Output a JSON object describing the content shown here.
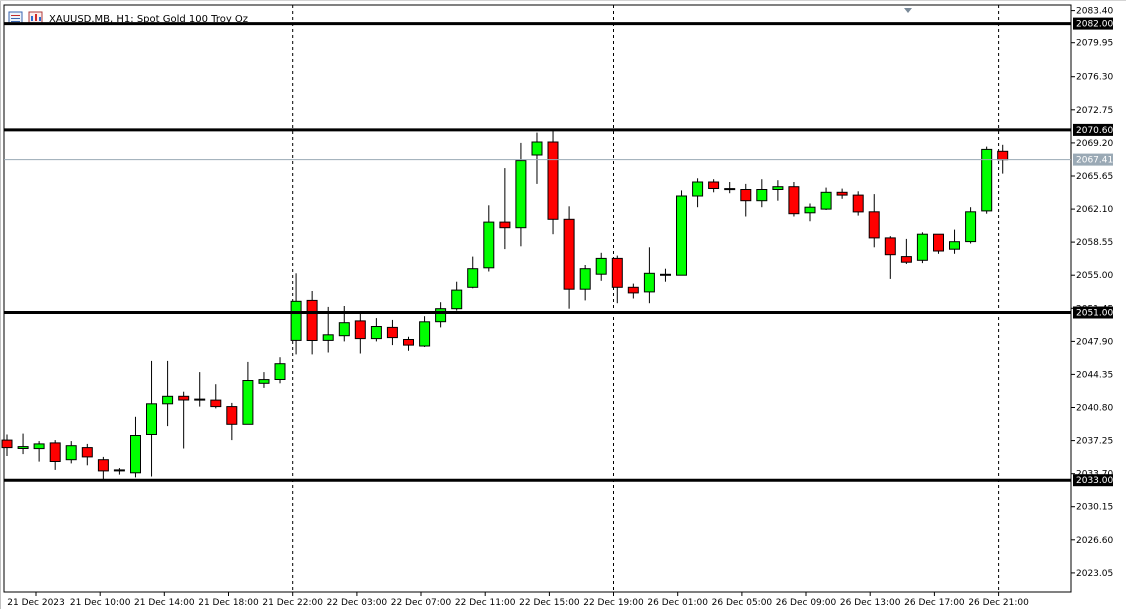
{
  "header": {
    "symbol": "XAUUSD.MB",
    "timeframe": "H1",
    "description": "Spot Gold 100 Troy Oz",
    "title": "XAUUSD.MB, H1:  Spot Gold 100 Troy Oz"
  },
  "colors": {
    "bull": "#00ff00",
    "bear": "#ff0000",
    "outline": "#000000",
    "level": "#000000",
    "bid": "#9aa9b5",
    "background": "#ffffff"
  },
  "chart_data": {
    "type": "candlestick",
    "symbol": "XAUUSD.MB",
    "timeframe": "H1",
    "ylim": [
      2021.0,
      2084.0
    ],
    "y_ticks": [
      "2083.40",
      "2079.95",
      "2076.30",
      "2072.75",
      "2069.20",
      "2065.65",
      "2062.10",
      "2058.55",
      "2055.00",
      "2051.45",
      "2047.90",
      "2044.35",
      "2040.80",
      "2037.25",
      "2033.70",
      "2030.15",
      "2026.60",
      "2023.05"
    ],
    "x_labels": [
      "21 Dec 2023",
      "21 Dec 10:00",
      "21 Dec 14:00",
      "21 Dec 18:00",
      "21 Dec 22:00",
      "22 Dec 03:00",
      "22 Dec 07:00",
      "22 Dec 11:00",
      "22 Dec 15:00",
      "22 Dec 19:00",
      "26 Dec 01:00",
      "26 Dec 05:00",
      "26 Dec 09:00",
      "26 Dec 13:00",
      "26 Dec 17:00",
      "26 Dec 21:00"
    ],
    "session_separators": [
      "21 Dec 22:00",
      "22 Dec 19:00",
      "26 Dec 21:00"
    ],
    "levels": [
      {
        "price": 2082.0,
        "label": "2082.00"
      },
      {
        "price": 2070.6,
        "label": "2070.60"
      },
      {
        "price": 2051.0,
        "label": "2051.00"
      },
      {
        "price": 2033.0,
        "label": "2033.00"
      }
    ],
    "current_price": {
      "price": 2067.41,
      "label": "2067.41"
    },
    "candles": [
      {
        "o": 2037.3,
        "h": 2037.9,
        "l": 2035.6,
        "c": 2036.5
      },
      {
        "o": 2036.4,
        "h": 2038.0,
        "l": 2035.8,
        "c": 2036.6
      },
      {
        "o": 2036.4,
        "h": 2037.2,
        "l": 2035.0,
        "c": 2036.9
      },
      {
        "o": 2037.0,
        "h": 2037.3,
        "l": 2034.1,
        "c": 2035.0
      },
      {
        "o": 2035.2,
        "h": 2037.2,
        "l": 2034.8,
        "c": 2036.7
      },
      {
        "o": 2036.5,
        "h": 2036.9,
        "l": 2034.6,
        "c": 2035.5
      },
      {
        "o": 2035.2,
        "h": 2035.5,
        "l": 2033.1,
        "c": 2034.0
      },
      {
        "o": 2034.0,
        "h": 2034.3,
        "l": 2033.6,
        "c": 2034.1
      },
      {
        "o": 2033.8,
        "h": 2039.8,
        "l": 2033.3,
        "c": 2037.8
      },
      {
        "o": 2037.9,
        "h": 2045.8,
        "l": 2033.4,
        "c": 2041.2
      },
      {
        "o": 2041.2,
        "h": 2045.8,
        "l": 2038.8,
        "c": 2042.0
      },
      {
        "o": 2042.0,
        "h": 2042.5,
        "l": 2036.4,
        "c": 2041.6
      },
      {
        "o": 2041.6,
        "h": 2044.6,
        "l": 2040.9,
        "c": 2041.7
      },
      {
        "o": 2041.6,
        "h": 2043.3,
        "l": 2040.7,
        "c": 2040.9
      },
      {
        "o": 2040.9,
        "h": 2041.3,
        "l": 2037.3,
        "c": 2039.0
      },
      {
        "o": 2039.0,
        "h": 2045.7,
        "l": 2039.0,
        "c": 2043.7
      },
      {
        "o": 2043.4,
        "h": 2044.6,
        "l": 2042.9,
        "c": 2043.8
      },
      {
        "o": 2043.8,
        "h": 2046.2,
        "l": 2043.4,
        "c": 2045.5
      },
      {
        "o": 2048.0,
        "h": 2055.2,
        "l": 2046.5,
        "c": 2052.2
      },
      {
        "o": 2052.3,
        "h": 2053.3,
        "l": 2046.5,
        "c": 2048.0
      },
      {
        "o": 2048.0,
        "h": 2051.6,
        "l": 2046.7,
        "c": 2048.6
      },
      {
        "o": 2048.5,
        "h": 2051.7,
        "l": 2047.9,
        "c": 2049.9
      },
      {
        "o": 2050.1,
        "h": 2050.9,
        "l": 2046.6,
        "c": 2048.2
      },
      {
        "o": 2048.2,
        "h": 2050.4,
        "l": 2047.9,
        "c": 2049.5
      },
      {
        "o": 2049.4,
        "h": 2050.2,
        "l": 2047.5,
        "c": 2048.3
      },
      {
        "o": 2048.1,
        "h": 2048.4,
        "l": 2046.9,
        "c": 2047.5
      },
      {
        "o": 2047.4,
        "h": 2050.6,
        "l": 2047.3,
        "c": 2050.0
      },
      {
        "o": 2050.0,
        "h": 2052.1,
        "l": 2049.4,
        "c": 2051.4
      },
      {
        "o": 2051.4,
        "h": 2054.3,
        "l": 2051.2,
        "c": 2053.4
      },
      {
        "o": 2053.7,
        "h": 2057.0,
        "l": 2053.6,
        "c": 2055.7
      },
      {
        "o": 2055.8,
        "h": 2062.5,
        "l": 2055.4,
        "c": 2060.7
      },
      {
        "o": 2060.7,
        "h": 2066.5,
        "l": 2057.8,
        "c": 2060.1
      },
      {
        "o": 2060.1,
        "h": 2069.2,
        "l": 2058.1,
        "c": 2067.3
      },
      {
        "o": 2067.9,
        "h": 2070.3,
        "l": 2064.8,
        "c": 2069.3
      },
      {
        "o": 2069.3,
        "h": 2070.6,
        "l": 2059.4,
        "c": 2061.0
      },
      {
        "o": 2061.0,
        "h": 2062.4,
        "l": 2051.4,
        "c": 2053.5
      },
      {
        "o": 2053.5,
        "h": 2056.1,
        "l": 2052.3,
        "c": 2055.7
      },
      {
        "o": 2055.1,
        "h": 2057.4,
        "l": 2054.4,
        "c": 2056.8
      },
      {
        "o": 2056.8,
        "h": 2057.1,
        "l": 2052.0,
        "c": 2053.7
      },
      {
        "o": 2053.7,
        "h": 2054.1,
        "l": 2052.5,
        "c": 2053.1
      },
      {
        "o": 2053.2,
        "h": 2058.0,
        "l": 2052.0,
        "c": 2055.2
      },
      {
        "o": 2055.0,
        "h": 2055.7,
        "l": 2054.3,
        "c": 2055.1
      },
      {
        "o": 2055.0,
        "h": 2064.1,
        "l": 2055.0,
        "c": 2063.5
      },
      {
        "o": 2063.5,
        "h": 2065.4,
        "l": 2062.3,
        "c": 2065.0
      },
      {
        "o": 2065.0,
        "h": 2065.3,
        "l": 2063.9,
        "c": 2064.3
      },
      {
        "o": 2064.3,
        "h": 2065.0,
        "l": 2063.8,
        "c": 2064.3
      },
      {
        "o": 2064.2,
        "h": 2064.8,
        "l": 2061.3,
        "c": 2063.0
      },
      {
        "o": 2063.0,
        "h": 2065.3,
        "l": 2062.3,
        "c": 2064.2
      },
      {
        "o": 2064.2,
        "h": 2065.2,
        "l": 2063.0,
        "c": 2064.5
      },
      {
        "o": 2064.5,
        "h": 2065.0,
        "l": 2061.3,
        "c": 2061.6
      },
      {
        "o": 2061.7,
        "h": 2062.7,
        "l": 2060.8,
        "c": 2062.3
      },
      {
        "o": 2062.1,
        "h": 2064.4,
        "l": 2062.0,
        "c": 2063.9
      },
      {
        "o": 2063.9,
        "h": 2064.3,
        "l": 2063.2,
        "c": 2063.6
      },
      {
        "o": 2063.6,
        "h": 2064.0,
        "l": 2061.4,
        "c": 2061.8
      },
      {
        "o": 2061.8,
        "h": 2063.7,
        "l": 2058.0,
        "c": 2059.0
      },
      {
        "o": 2059.0,
        "h": 2059.2,
        "l": 2054.6,
        "c": 2057.2
      },
      {
        "o": 2057.0,
        "h": 2058.9,
        "l": 2056.2,
        "c": 2056.4
      },
      {
        "o": 2056.6,
        "h": 2059.6,
        "l": 2056.3,
        "c": 2059.4
      },
      {
        "o": 2059.4,
        "h": 2059.4,
        "l": 2057.3,
        "c": 2057.6
      },
      {
        "o": 2057.8,
        "h": 2059.9,
        "l": 2057.3,
        "c": 2058.6
      },
      {
        "o": 2058.6,
        "h": 2062.3,
        "l": 2058.4,
        "c": 2061.8
      },
      {
        "o": 2061.9,
        "h": 2068.8,
        "l": 2061.6,
        "c": 2068.5
      },
      {
        "o": 2068.3,
        "h": 2069.0,
        "l": 2065.9,
        "c": 2067.4
      }
    ]
  }
}
